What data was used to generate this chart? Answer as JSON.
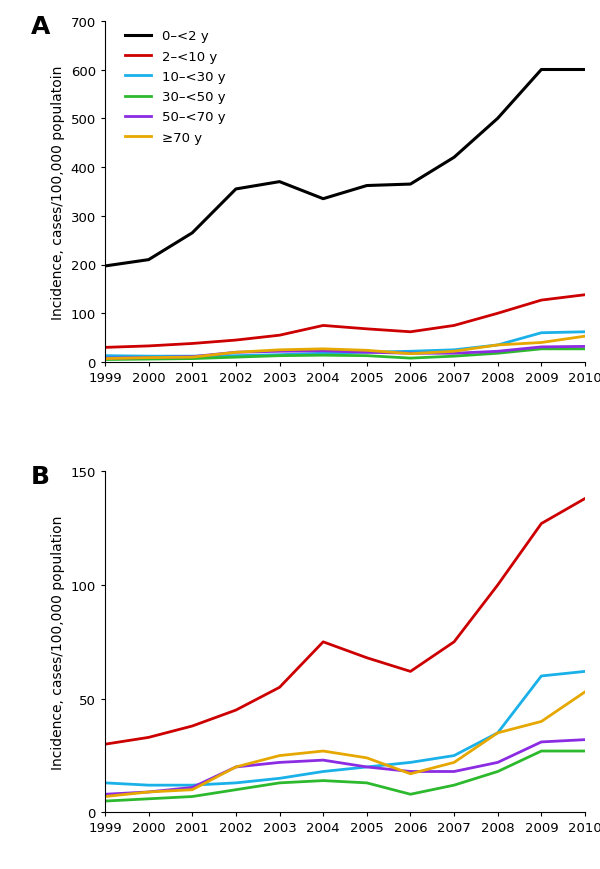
{
  "years": [
    1999,
    2000,
    2001,
    2002,
    2003,
    2004,
    2005,
    2006,
    2007,
    2008,
    2009,
    2010
  ],
  "series": {
    "0–<2 y": {
      "color": "#000000",
      "values": [
        197,
        210,
        265,
        355,
        370,
        335,
        362,
        365,
        420,
        500,
        600,
        600
      ],
      "linewidth": 2.2
    },
    "2–<10 y": {
      "color": "#cc0000",
      "values": [
        30,
        33,
        38,
        45,
        55,
        75,
        68,
        62,
        75,
        100,
        127,
        138
      ],
      "linewidth": 2.0
    },
    "10–<30 y": {
      "color": "#1ab0e8",
      "values": [
        13,
        12,
        12,
        13,
        15,
        18,
        20,
        22,
        25,
        35,
        60,
        62
      ],
      "linewidth": 2.0
    },
    "30–<50 y": {
      "color": "#2db92d",
      "values": [
        5,
        6,
        7,
        10,
        13,
        14,
        13,
        8,
        12,
        18,
        27,
        27
      ],
      "linewidth": 2.0
    },
    "50–<70 y": {
      "color": "#8b2be2",
      "values": [
        8,
        9,
        11,
        20,
        22,
        23,
        20,
        18,
        18,
        22,
        31,
        32
      ],
      "linewidth": 2.0
    },
    "≥70 y": {
      "color": "#e6a800",
      "values": [
        7,
        9,
        10,
        20,
        25,
        27,
        24,
        17,
        22,
        35,
        40,
        53
      ],
      "linewidth": 2.0
    }
  },
  "panel_A": {
    "ylim": [
      0,
      700
    ],
    "yticks": [
      0,
      100,
      200,
      300,
      400,
      500,
      600,
      700
    ],
    "ylabel": "Incidence, cases/100,000 populatoin"
  },
  "panel_B": {
    "ylim": [
      0,
      150
    ],
    "yticks": [
      0,
      50,
      100,
      150
    ],
    "ylabel": "Incidence, cases/100,000 population"
  },
  "label_A": "A",
  "label_B": "B",
  "legend_order": [
    "0–<2 y",
    "2–<10 y",
    "10–<30 y",
    "30–<50 y",
    "50–<70 y",
    "≥70 y"
  ],
  "background_color": "#ffffff",
  "tick_fontsize": 9.5,
  "ylabel_fontsize": 10,
  "legend_fontsize": 9.5,
  "panel_label_fontsize": 18
}
